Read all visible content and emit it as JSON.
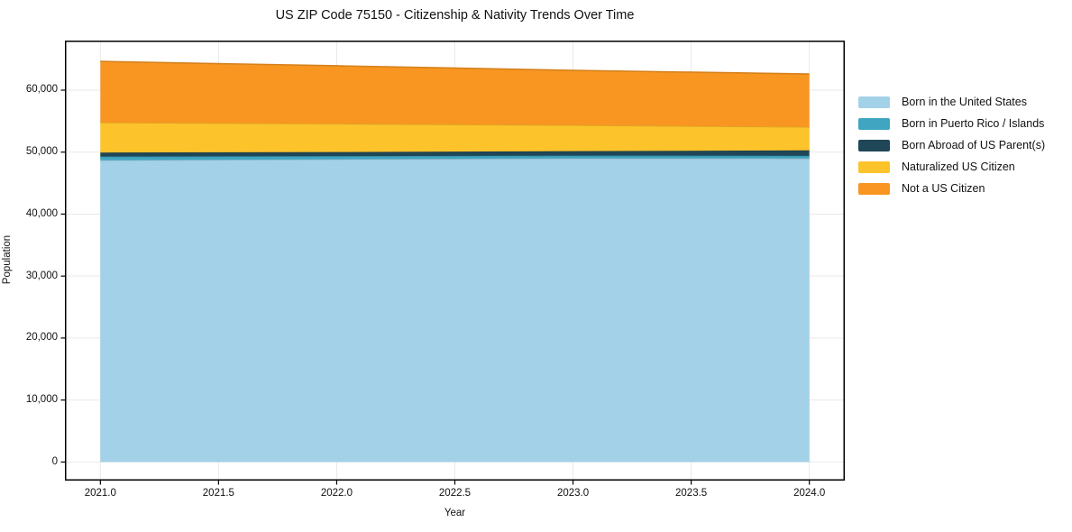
{
  "title": "US ZIP Code 75150 - Citizenship & Nativity Trends Over Time",
  "chart_data": {
    "type": "area",
    "stacked": true,
    "title": "US ZIP Code 75150 - Citizenship & Nativity Trends Over Time",
    "xlabel": "Year",
    "ylabel": "Population",
    "x": [
      2021,
      2022,
      2023,
      2024
    ],
    "series": [
      {
        "name": "Born in the United States",
        "color": "#a3d1e8",
        "values": [
          48700,
          48850,
          49000,
          48990
        ]
      },
      {
        "name": "Born in Puerto Rico / Islands",
        "color": "#3fa5c1",
        "values": [
          580,
          510,
          430,
          430
        ]
      },
      {
        "name": "Born Abroad of US Parent(s)",
        "color": "#1f4757",
        "values": [
          650,
          650,
          720,
          870
        ]
      },
      {
        "name": "Naturalized US Citizen",
        "color": "#fdc32b",
        "values": [
          4850,
          4570,
          4200,
          3770
        ]
      },
      {
        "name": "Not a US Citizen",
        "color": "#f89621",
        "values": [
          9860,
          9350,
          8840,
          8550
        ]
      }
    ],
    "totals": [
      64640,
      63930,
      63190,
      62610
    ],
    "xlim": [
      2020.85,
      2024.15
    ],
    "ylim": [
      -3000,
      68000
    ],
    "xticks": [
      2021.0,
      2021.5,
      2022.0,
      2022.5,
      2023.0,
      2023.5,
      2024.0
    ],
    "xtick_labels": [
      "2021.0",
      "2021.5",
      "2022.0",
      "2022.5",
      "2023.0",
      "2023.5",
      "2024.0"
    ],
    "yticks": [
      0,
      10000,
      20000,
      30000,
      40000,
      50000,
      60000
    ],
    "ytick_labels": [
      "0",
      "10,000",
      "20,000",
      "30,000",
      "40,000",
      "50,000",
      "60,000"
    ],
    "grid": true,
    "grid_color": "#e9e9e9",
    "spine_color": "#000000",
    "background": "#ffffff",
    "legend_position": "right of plot"
  }
}
